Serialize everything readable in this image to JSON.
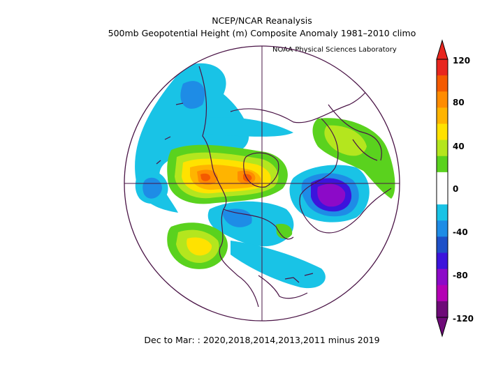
{
  "title": "NCEP/NCAR Reanalysis",
  "subtitle": "500mb Geopotential Height (m) Composite Anomaly 1981–2010 climo",
  "credit": "NOAA Physical Sciences Laboratory",
  "footer": "Dec to Mar: : 2020,2018,2014,2013,2011 minus 2019",
  "colorbar": {
    "labels": [
      "120",
      "80",
      "40",
      "0",
      "-40",
      "-80",
      "-120"
    ],
    "levels": [
      {
        "color": "#e8261e"
      },
      {
        "color": "#f45a00"
      },
      {
        "color": "#ff8c00"
      },
      {
        "color": "#ffb400"
      },
      {
        "color": "#ffe200"
      },
      {
        "color": "#b4e61e"
      },
      {
        "color": "#5ad21e"
      },
      {
        "color": "#ffffff"
      },
      {
        "color": "#ffffff"
      },
      {
        "color": "#19c3e6"
      },
      {
        "color": "#1e8ce6"
      },
      {
        "color": "#1e50c8"
      },
      {
        "color": "#3c14dc"
      },
      {
        "color": "#8c0ac8"
      },
      {
        "color": "#b400b4"
      },
      {
        "color": "#6e0a78"
      }
    ]
  },
  "map": {
    "projection": "north-polar-stereographic",
    "coastline_color": "#4a1446"
  }
}
